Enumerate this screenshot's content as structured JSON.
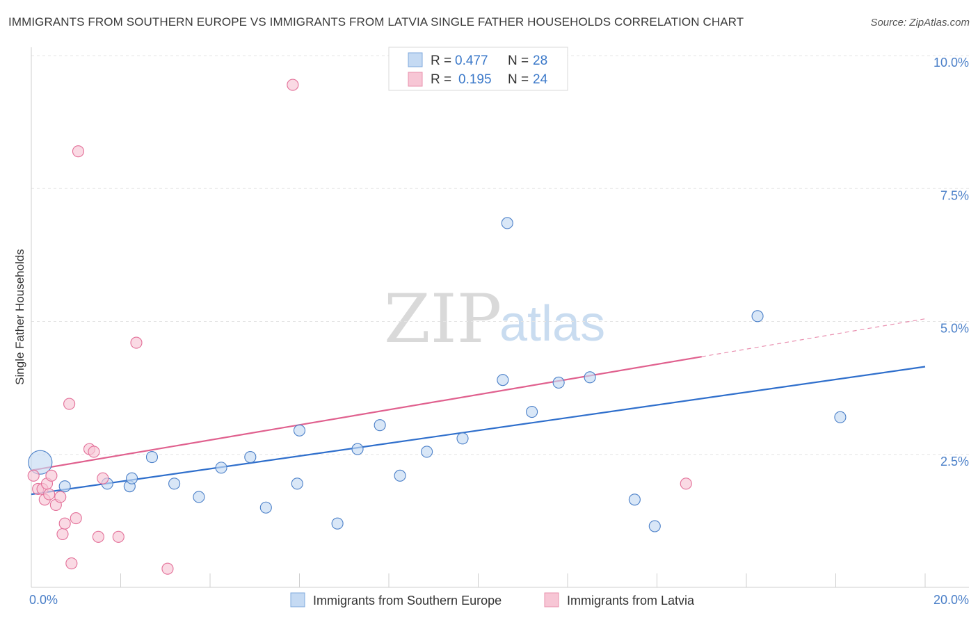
{
  "header": {
    "title": "IMMIGRANTS FROM SOUTHERN EUROPE VS IMMIGRANTS FROM LATVIA SINGLE FATHER HOUSEHOLDS CORRELATION CHART",
    "source": "Source: ZipAtlas.com"
  },
  "watermark": {
    "zip": "ZIP",
    "atlas": "atlas"
  },
  "chart_data": {
    "type": "scatter",
    "title": "IMMIGRANTS FROM SOUTHERN EUROPE VS IMMIGRANTS FROM LATVIA SINGLE FATHER HOUSEHOLDS CORRELATION CHART",
    "xlabel": "",
    "ylabel": "Single Father Households",
    "xlim": [
      0,
      20
    ],
    "ylim": [
      0,
      10
    ],
    "x_tick_labels": {
      "min": "0.0%",
      "max": "20.0%"
    },
    "y_ticks": [
      {
        "value": 2.5,
        "label": "2.5%"
      },
      {
        "value": 5.0,
        "label": "5.0%"
      },
      {
        "value": 7.5,
        "label": "7.5%"
      },
      {
        "value": 10.0,
        "label": "10.0%"
      }
    ],
    "legend": {
      "r_label": "R =",
      "n_label": "N ="
    },
    "series": [
      {
        "name": "Immigrants from Southern Europe",
        "color": "#4a7fc8",
        "fill": "#c5daf3",
        "line_color": "#2f6fcc",
        "r": "0.477",
        "n": "28",
        "trend": {
          "x0": 0,
          "y0": 1.75,
          "x1": 20,
          "y1": 4.15,
          "dash_from": null
        },
        "points": [
          {
            "x": 0.2,
            "y": 2.35,
            "big": true
          },
          {
            "x": 0.75,
            "y": 1.9
          },
          {
            "x": 1.7,
            "y": 1.95
          },
          {
            "x": 2.2,
            "y": 1.9
          },
          {
            "x": 2.25,
            "y": 2.05
          },
          {
            "x": 2.7,
            "y": 2.45
          },
          {
            "x": 3.2,
            "y": 1.95
          },
          {
            "x": 3.75,
            "y": 1.7
          },
          {
            "x": 4.25,
            "y": 2.25
          },
          {
            "x": 4.9,
            "y": 2.45
          },
          {
            "x": 5.25,
            "y": 1.5
          },
          {
            "x": 5.95,
            "y": 1.95
          },
          {
            "x": 6.0,
            "y": 2.95
          },
          {
            "x": 6.85,
            "y": 1.2
          },
          {
            "x": 7.3,
            "y": 2.6
          },
          {
            "x": 7.8,
            "y": 3.05
          },
          {
            "x": 8.25,
            "y": 2.1
          },
          {
            "x": 8.85,
            "y": 2.55
          },
          {
            "x": 9.65,
            "y": 2.8
          },
          {
            "x": 10.55,
            "y": 3.9
          },
          {
            "x": 10.65,
            "y": 6.85
          },
          {
            "x": 11.2,
            "y": 3.3
          },
          {
            "x": 11.8,
            "y": 3.85
          },
          {
            "x": 12.5,
            "y": 3.95
          },
          {
            "x": 13.5,
            "y": 1.65
          },
          {
            "x": 13.95,
            "y": 1.15
          },
          {
            "x": 16.25,
            "y": 5.1
          },
          {
            "x": 18.1,
            "y": 3.2
          }
        ]
      },
      {
        "name": "Immigrants from Latvia",
        "color": "#e36f98",
        "fill": "#f7c6d5",
        "line_color": "#e0608e",
        "r": "0.195",
        "n": "24",
        "trend": {
          "x0": 0,
          "y0": 2.2,
          "x1": 20,
          "y1": 5.05,
          "dash_from": 15
        },
        "points": [
          {
            "x": 0.05,
            "y": 2.1
          },
          {
            "x": 0.15,
            "y": 1.85
          },
          {
            "x": 0.25,
            "y": 1.85
          },
          {
            "x": 0.3,
            "y": 1.65
          },
          {
            "x": 0.35,
            "y": 1.95
          },
          {
            "x": 0.4,
            "y": 1.75
          },
          {
            "x": 0.45,
            "y": 2.1
          },
          {
            "x": 0.55,
            "y": 1.55
          },
          {
            "x": 0.65,
            "y": 1.7
          },
          {
            "x": 0.7,
            "y": 1.0
          },
          {
            "x": 0.75,
            "y": 1.2
          },
          {
            "x": 0.85,
            "y": 3.45
          },
          {
            "x": 0.9,
            "y": 0.45
          },
          {
            "x": 1.0,
            "y": 1.3
          },
          {
            "x": 1.05,
            "y": 8.2
          },
          {
            "x": 1.3,
            "y": 2.6
          },
          {
            "x": 1.4,
            "y": 2.55
          },
          {
            "x": 1.5,
            "y": 0.95
          },
          {
            "x": 1.6,
            "y": 2.05
          },
          {
            "x": 1.95,
            "y": 0.95
          },
          {
            "x": 2.35,
            "y": 4.6
          },
          {
            "x": 3.05,
            "y": 0.35
          },
          {
            "x": 5.85,
            "y": 9.45
          },
          {
            "x": 14.65,
            "y": 1.95
          }
        ]
      }
    ]
  }
}
